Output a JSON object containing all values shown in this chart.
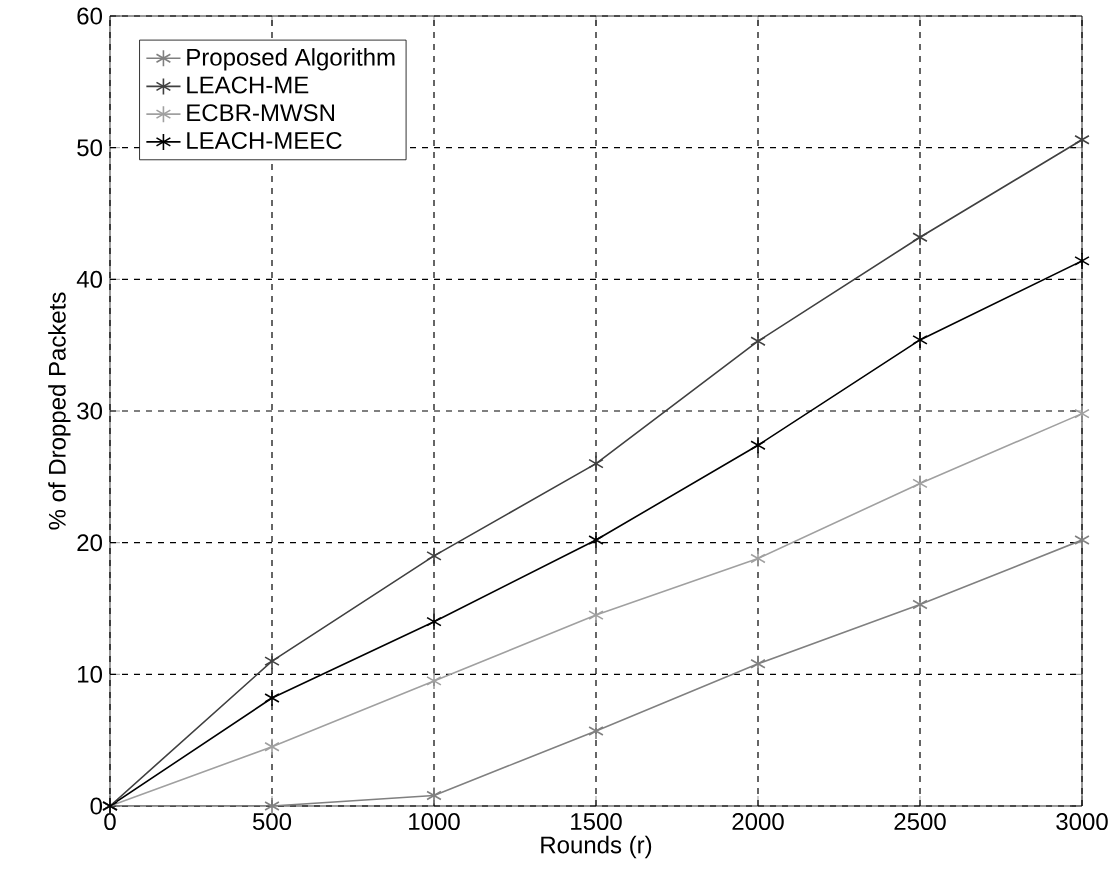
{
  "chart_data": {
    "type": "line",
    "xlabel": "Rounds (r)",
    "ylabel": "% of Dropped Packets",
    "x": [
      0,
      500,
      1000,
      1500,
      2000,
      2500,
      3000
    ],
    "series": [
      {
        "name": "Proposed Algorithm",
        "color": "#808080",
        "values": [
          0,
          0,
          0.8,
          5.7,
          10.8,
          15.3,
          20.2
        ]
      },
      {
        "name": "LEACH-ME",
        "color": "#404040",
        "values": [
          0,
          11,
          19,
          26,
          35.3,
          43.2,
          50.6
        ]
      },
      {
        "name": "ECBR-MWSN",
        "color": "#a0a0a0",
        "values": [
          0,
          4.5,
          9.5,
          14.5,
          18.8,
          24.5,
          29.8
        ]
      },
      {
        "name": "LEACH-MEEC",
        "color": "#000000",
        "values": [
          0,
          8.2,
          14,
          20.2,
          27.4,
          35.4,
          41.4
        ]
      }
    ],
    "xlim": [
      0,
      3000
    ],
    "ylim": [
      0,
      60
    ],
    "xticks": [
      0,
      500,
      1000,
      1500,
      2000,
      2500,
      3000
    ],
    "yticks": [
      0,
      10,
      20,
      30,
      40,
      50,
      60
    ],
    "grid": true,
    "legend": "top left",
    "marker": "cross",
    "line_style": "solid"
  }
}
